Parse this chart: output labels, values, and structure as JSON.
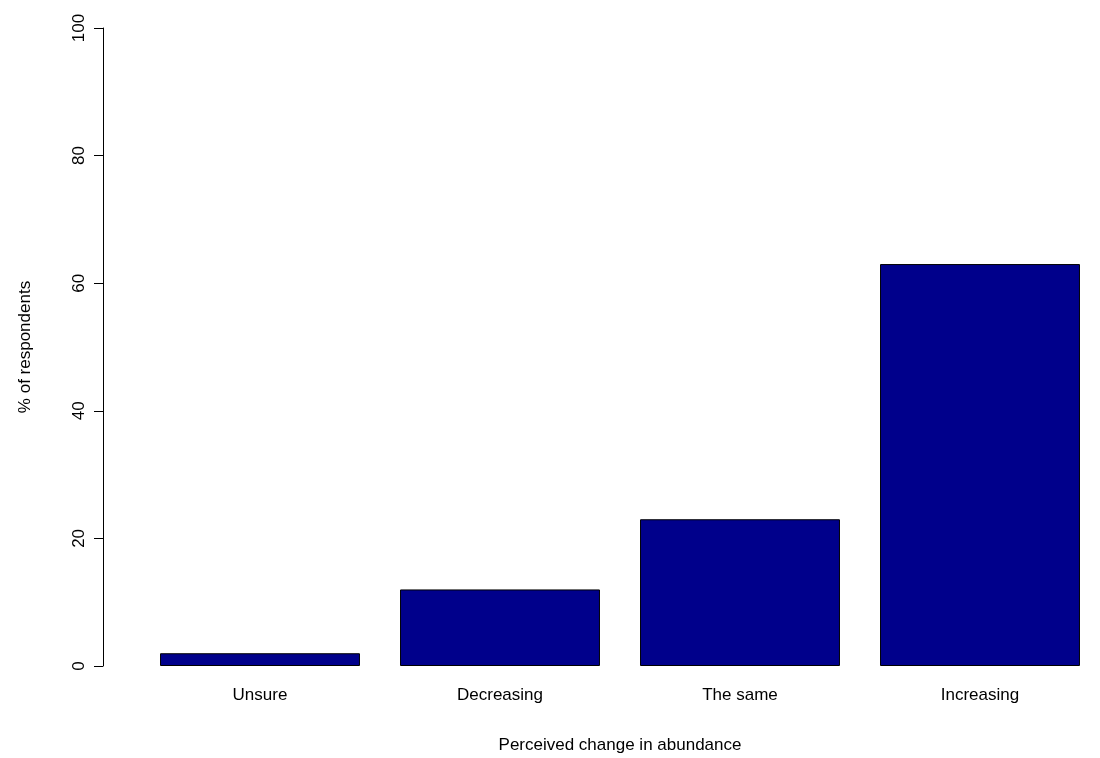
{
  "chart_data": {
    "type": "bar",
    "xlabel": "Perceived change in abundance",
    "ylabel": "% of respondents",
    "categories": [
      "Unsure",
      "Decreasing",
      "The same",
      "Increasing"
    ],
    "values": [
      2,
      12,
      23,
      63
    ],
    "color": "#00008b",
    "ylim": [
      0,
      100
    ],
    "yticks": [
      0,
      20,
      40,
      60,
      80,
      100
    ],
    "grid": false
  }
}
